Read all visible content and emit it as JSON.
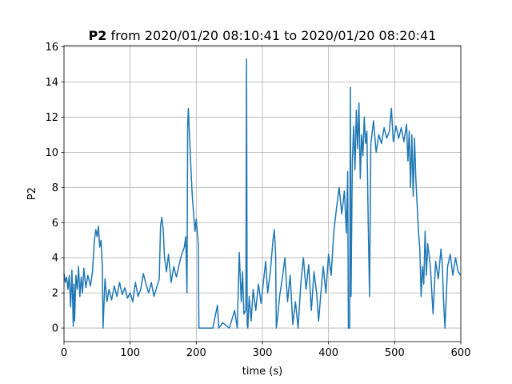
{
  "chart_data": {
    "type": "line",
    "title_bold": "P2",
    "title": "from 2020/01/20 08:10:41 to 2020/01/20 08:20:41",
    "x_label": "time (s)",
    "y_label": "P2",
    "x": [
      0,
      2,
      4,
      6,
      8,
      10,
      12,
      14,
      15,
      16,
      18,
      20,
      22,
      24,
      26,
      28,
      30,
      33,
      36,
      40,
      43,
      46,
      48,
      50,
      52,
      54,
      56,
      58,
      59,
      62,
      65,
      68,
      72,
      76,
      80,
      84,
      88,
      92,
      96,
      100,
      104,
      108,
      112,
      116,
      120,
      124,
      128,
      132,
      136,
      140,
      144,
      146,
      148,
      150,
      152,
      155,
      158,
      162,
      166,
      170,
      174,
      178,
      182,
      184,
      186,
      187,
      188,
      190,
      192,
      194,
      196,
      198,
      200,
      203,
      204,
      206,
      215,
      225,
      232,
      234,
      240,
      250,
      258,
      262,
      265,
      268,
      270,
      272,
      275,
      276,
      277,
      278,
      280,
      283,
      286,
      290,
      294,
      298,
      302,
      305,
      308,
      312,
      316,
      318,
      320,
      321,
      323,
      326,
      330,
      334,
      338,
      342,
      346,
      350,
      354,
      358,
      362,
      366,
      370,
      374,
      378,
      382,
      385,
      388,
      392,
      396,
      400,
      404,
      408,
      412,
      416,
      420,
      424,
      427,
      429,
      430,
      432,
      433,
      434,
      436,
      438,
      440,
      442,
      444,
      446,
      448,
      450,
      452,
      454,
      456,
      458,
      460,
      462,
      464,
      468,
      472,
      476,
      480,
      484,
      488,
      492,
      495,
      498,
      502,
      506,
      510,
      514,
      518,
      520,
      522,
      524,
      526,
      528,
      530,
      532,
      534,
      536,
      538,
      540,
      542,
      544,
      546,
      548,
      550,
      554,
      558,
      562,
      566,
      570,
      572,
      574,
      576,
      580,
      584,
      588,
      592,
      596,
      600
    ],
    "series": [
      {
        "name": "P2",
        "color": "#1f77b4",
        "values": [
          3.1,
          2.6,
          2.9,
          2.2,
          3.0,
          1.2,
          3.3,
          0.1,
          2.5,
          0.4,
          3.0,
          2.2,
          3.5,
          1.8,
          2.9,
          2.0,
          3.4,
          2.3,
          3.0,
          2.4,
          3.2,
          5.0,
          5.6,
          5.2,
          5.8,
          4.6,
          5.0,
          3.5,
          0,
          2.8,
          1.5,
          2.2,
          1.6,
          2.4,
          1.8,
          2.6,
          1.9,
          2.3,
          1.7,
          2.0,
          1.5,
          2.6,
          1.8,
          2.2,
          3.1,
          2.5,
          2.0,
          2.6,
          1.8,
          2.3,
          2.8,
          5.8,
          6.3,
          5.6,
          4.0,
          3.2,
          4.2,
          2.6,
          3.5,
          2.9,
          3.6,
          4.2,
          4.6,
          5.2,
          2.0,
          11.5,
          12.5,
          10.8,
          9.0,
          7.5,
          6.5,
          5.5,
          6.2,
          4.8,
          0,
          0,
          0,
          0,
          1.3,
          0,
          0.3,
          0,
          1.0,
          0,
          4.3,
          1.5,
          3.2,
          0.8,
          1.0,
          15.3,
          0.2,
          0,
          1.8,
          0.4,
          2.2,
          1.0,
          2.5,
          1.4,
          2.8,
          3.8,
          2.0,
          3.2,
          5.0,
          5.6,
          4.2,
          0,
          0.6,
          1.8,
          2.8,
          4.0,
          1.5,
          3.0,
          0.2,
          1.5,
          0,
          2.5,
          4.0,
          2.2,
          3.6,
          1.0,
          3.2,
          2.0,
          0.4,
          1.8,
          3.5,
          2.0,
          4.2,
          3.0,
          5.5,
          6.8,
          8.0,
          6.5,
          7.8,
          5.4,
          8.9,
          0,
          0,
          13.7,
          1.8,
          9.5,
          11.5,
          9.0,
          12.4,
          10.2,
          12.8,
          8.5,
          11.0,
          9.8,
          12.0,
          10.5,
          11.2,
          6.0,
          1.8,
          10.5,
          11.8,
          10.0,
          11.0,
          10.5,
          11.4,
          10.8,
          11.2,
          12.5,
          10.6,
          11.5,
          10.8,
          11.4,
          10.6,
          11.6,
          9.5,
          11.2,
          8.0,
          11.0,
          7.5,
          10.8,
          8.5,
          7.0,
          5.5,
          4.5,
          1.8,
          3.5,
          2.5,
          5.5,
          3.0,
          4.8,
          3.5,
          0.8,
          3.8,
          2.8,
          4.5,
          3.6,
          1.5,
          0,
          3.5,
          4.2,
          3.0,
          4.0,
          3.2,
          3.0
        ]
      }
    ],
    "xlim": [
      0,
      600
    ],
    "xticks": [
      0,
      100,
      200,
      300,
      400,
      500,
      600
    ],
    "ylim": [
      -0.77,
      16.07
    ],
    "yticks": [
      0,
      2,
      4,
      6,
      8,
      10,
      12,
      14,
      16
    ],
    "grid": true
  }
}
